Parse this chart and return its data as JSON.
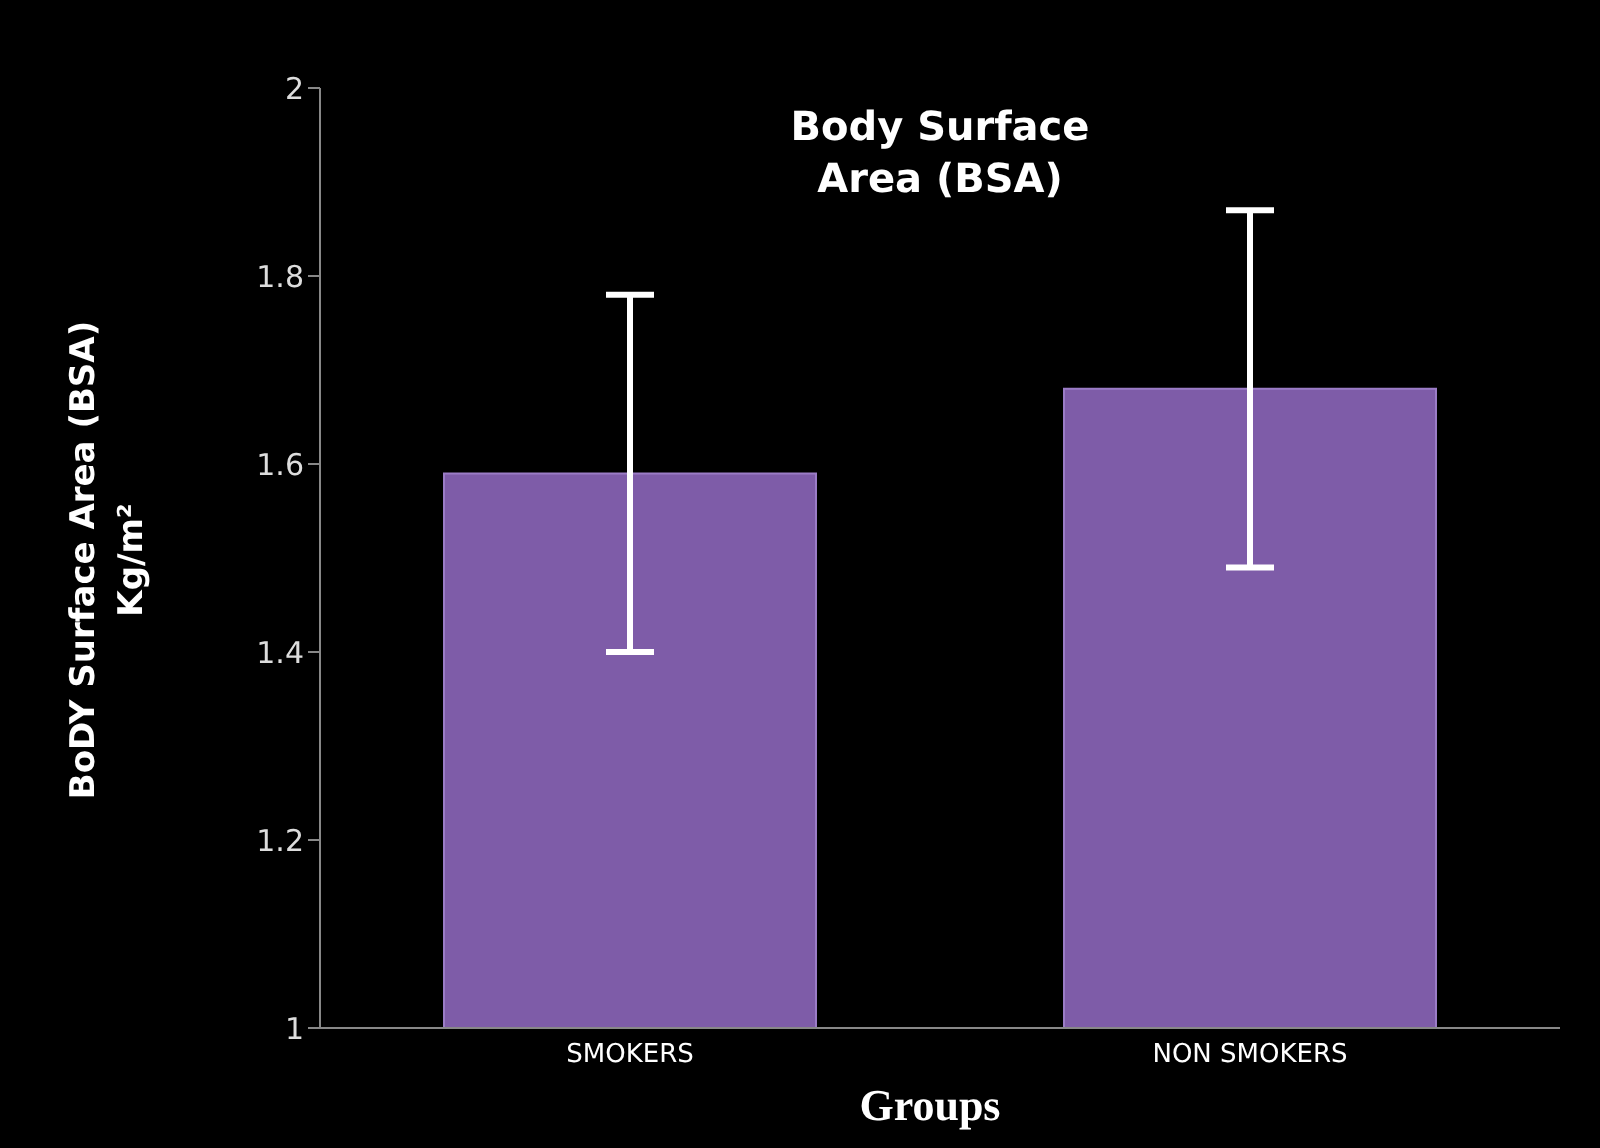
{
  "chart_data": {
    "type": "bar",
    "title": "Body Surface Area (BSA)",
    "xlabel": "Groups",
    "ylabel": "BoDY Surface Area (BSA) Kg/m²",
    "categories": [
      "SMOKERS",
      "NON SMOKERS"
    ],
    "values": [
      1.59,
      1.68
    ],
    "errors": [
      0.19,
      0.19
    ],
    "color": "#7e5ca8",
    "ylim": [
      1,
      2
    ],
    "yticks": [
      1,
      1.2,
      1.4,
      1.6,
      1.8,
      2
    ],
    "grid": false,
    "legend": false
  }
}
